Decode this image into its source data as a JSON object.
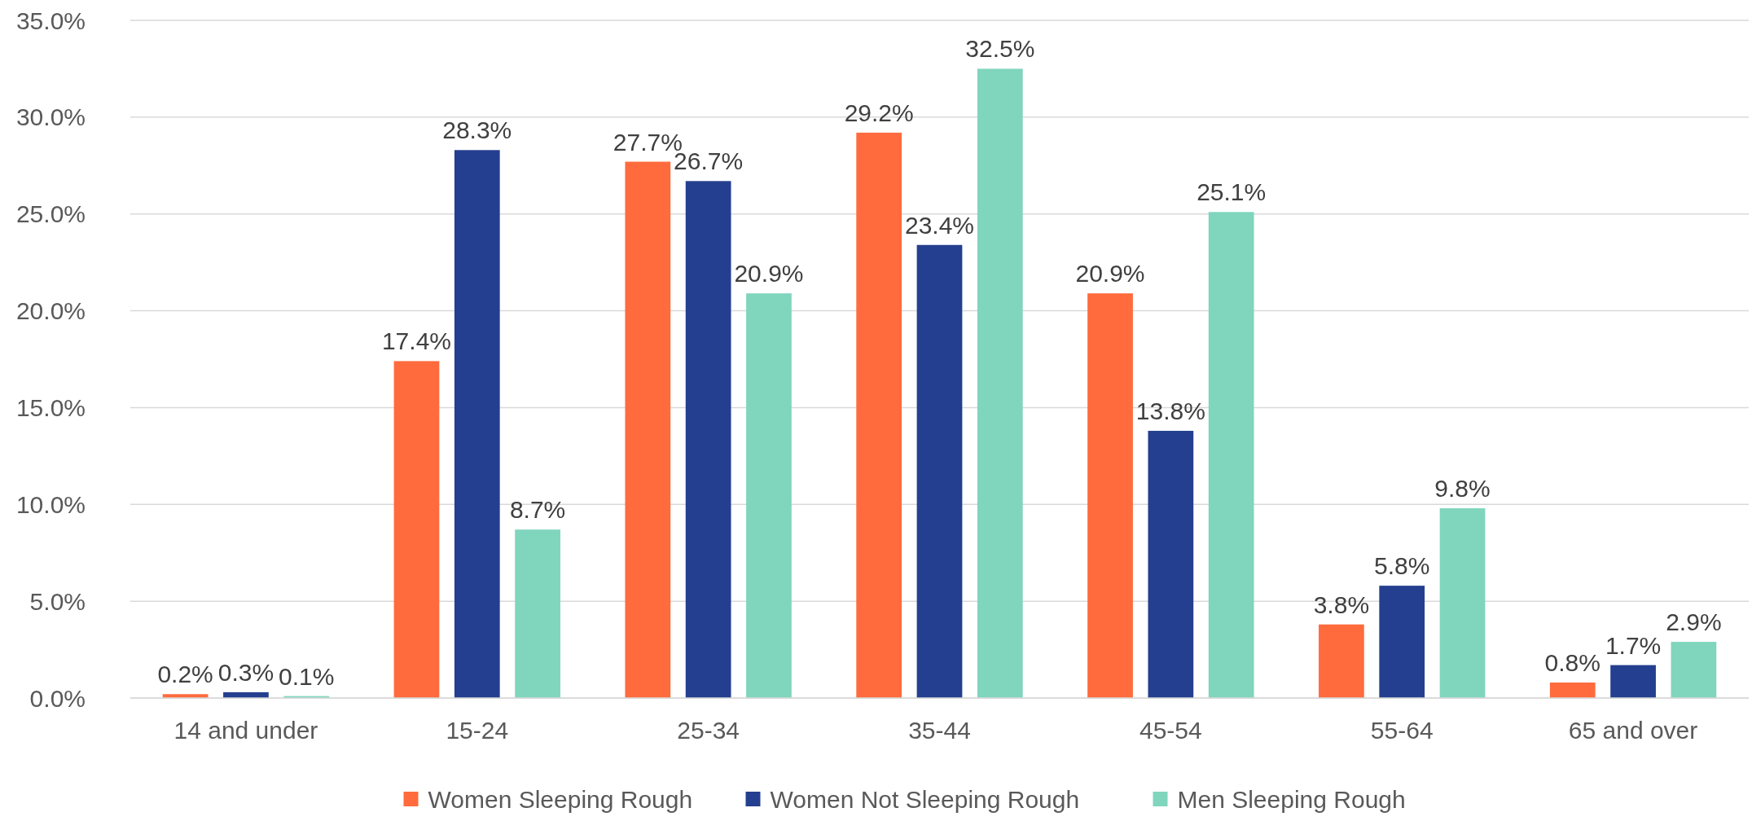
{
  "chart_data": {
    "type": "bar",
    "categories": [
      "14 and under",
      "15-24",
      "25-34",
      "35-44",
      "45-54",
      "55-64",
      "65 and over"
    ],
    "series": [
      {
        "name": "Women Sleeping Rough",
        "color": "#ff6b3d",
        "values": [
          0.2,
          17.4,
          27.7,
          29.2,
          20.9,
          3.8,
          0.8
        ],
        "value_labels": [
          "0.2%",
          "17.4%",
          "27.7%",
          "29.2%",
          "20.9%",
          "3.8%",
          "0.8%"
        ]
      },
      {
        "name": "Women Not Sleeping Rough",
        "color": "#243f8f",
        "values": [
          0.3,
          28.3,
          26.7,
          23.4,
          13.8,
          5.8,
          1.7
        ],
        "value_labels": [
          "0.3%",
          "28.3%",
          "26.7%",
          "23.4%",
          "13.8%",
          "5.8%",
          "1.7%"
        ]
      },
      {
        "name": "Men Sleeping Rough",
        "color": "#80d5bd",
        "values": [
          0.1,
          8.7,
          20.9,
          32.5,
          25.1,
          9.8,
          2.9
        ],
        "value_labels": [
          "0.1%",
          "8.7%",
          "20.9%",
          "32.5%",
          "25.1%",
          "9.8%",
          "2.9%"
        ]
      }
    ],
    "ylim": [
      0,
      35
    ],
    "yticks": [
      {
        "value": 0,
        "label": "0.0%"
      },
      {
        "value": 5,
        "label": "5.0%"
      },
      {
        "value": 10,
        "label": "10.0%"
      },
      {
        "value": 15,
        "label": "15.0%"
      },
      {
        "value": 20,
        "label": "20.0%"
      },
      {
        "value": 25,
        "label": "25.0%"
      },
      {
        "value": 30,
        "label": "30.0%"
      },
      {
        "value": 35,
        "label": "35.0%"
      }
    ],
    "grid": "y",
    "legend": "bottom"
  }
}
